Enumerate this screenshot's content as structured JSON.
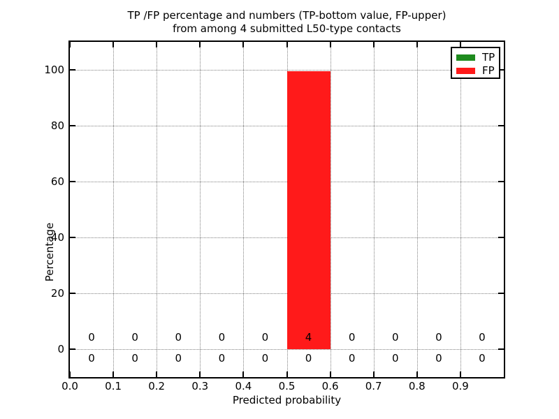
{
  "figure": {
    "title_lines": [
      "TP /FP percentage and numbers (TP-bottom value, FP-upper)",
      "from among 4 submitted L50-type contacts"
    ]
  },
  "chart_data": {
    "type": "bar",
    "title": "TP /FP percentage and numbers (TP-bottom value, FP-upper)\nfrom among 4 submitted L50-type contacts",
    "xlabel": "Predicted probability",
    "ylabel": "Percentage",
    "xlim": [
      0.0,
      1.0
    ],
    "ylim": [
      -10,
      110
    ],
    "xtick_values": [
      0.0,
      0.1,
      0.2,
      0.3,
      0.4,
      0.5,
      0.6,
      0.7,
      0.8,
      0.9
    ],
    "xtick_labels": [
      "0.0",
      "0.1",
      "0.2",
      "0.3",
      "0.4",
      "0.5",
      "0.6",
      "0.7",
      "0.8",
      "0.9"
    ],
    "ytick_values": [
      0,
      20,
      40,
      60,
      80,
      100
    ],
    "ytick_labels": [
      "0",
      "20",
      "40",
      "60",
      "80",
      "100"
    ],
    "grid": {
      "show": true,
      "linestyle": "dotted",
      "color": "#808080"
    },
    "bin_width": 0.1,
    "bin_starts": [
      0.0,
      0.1,
      0.2,
      0.3,
      0.4,
      0.5,
      0.6,
      0.7,
      0.8,
      0.9
    ],
    "series": [
      {
        "name": "TP",
        "color": "#1e8b1e",
        "label_row": "bottom",
        "percent": [
          0,
          0,
          0,
          0,
          0,
          0,
          0,
          0,
          0,
          0
        ],
        "counts": [
          0,
          0,
          0,
          0,
          0,
          0,
          0,
          0,
          0,
          0
        ]
      },
      {
        "name": "FP",
        "color": "#ff1a1a",
        "label_row": "top",
        "percent": [
          0,
          0,
          0,
          0,
          0,
          100,
          0,
          0,
          0,
          0
        ],
        "counts": [
          0,
          0,
          0,
          0,
          0,
          4,
          0,
          0,
          0,
          0
        ]
      }
    ],
    "legend": {
      "position": "upper right",
      "entries": [
        {
          "label": "TP",
          "color": "#1e8b1e"
        },
        {
          "label": "FP",
          "color": "#ff1a1a"
        }
      ]
    }
  }
}
